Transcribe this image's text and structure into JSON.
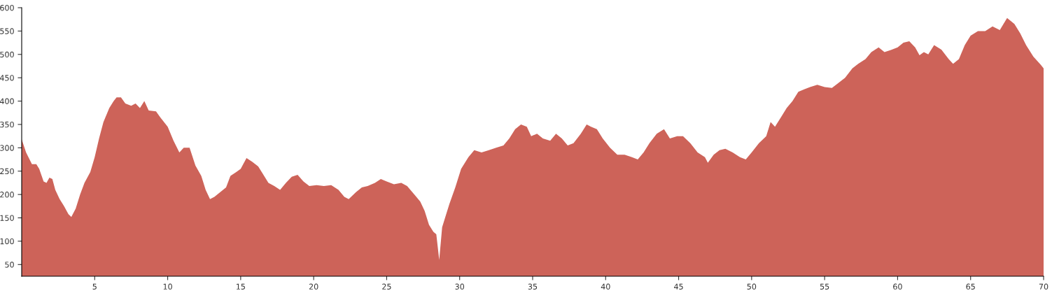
{
  "chart_data": {
    "type": "area",
    "xlim": [
      0,
      70
    ],
    "ylim": [
      25,
      600
    ],
    "xticks": [
      5,
      10,
      15,
      20,
      25,
      30,
      35,
      40,
      45,
      50,
      55,
      60,
      65,
      70
    ],
    "yticks": [
      50,
      100,
      150,
      200,
      250,
      300,
      350,
      400,
      450,
      500,
      550,
      600
    ],
    "grid": false,
    "legend": false,
    "series": [
      {
        "color": "#cd6359",
        "x": [
          0,
          0.3,
          0.7,
          1.0,
          1.2,
          1.5,
          1.7,
          1.9,
          2.1,
          2.3,
          2.6,
          2.9,
          3.2,
          3.4,
          3.7,
          4.0,
          4.3,
          4.7,
          5.0,
          5.3,
          5.6,
          6.0,
          6.3,
          6.5,
          6.8,
          7.1,
          7.5,
          7.8,
          8.1,
          8.4,
          8.7,
          9.2,
          9.5,
          10.0,
          10.4,
          10.8,
          11.1,
          11.5,
          11.9,
          12.3,
          12.6,
          12.9,
          13.2,
          13.6,
          14.0,
          14.3,
          14.7,
          15.0,
          15.4,
          15.8,
          16.2,
          16.5,
          16.9,
          17.3,
          17.7,
          18.1,
          18.5,
          18.9,
          19.3,
          19.7,
          20.2,
          20.7,
          21.2,
          21.7,
          22.1,
          22.4,
          22.9,
          23.3,
          23.7,
          24.2,
          24.6,
          25.0,
          25.5,
          26.0,
          26.4,
          26.9,
          27.3,
          27.6,
          27.9,
          28.2,
          28.4,
          28.6,
          28.8,
          29.0,
          29.3,
          29.7,
          30.1,
          30.6,
          31.0,
          31.5,
          32.0,
          32.5,
          33.0,
          33.4,
          33.8,
          34.2,
          34.6,
          34.9,
          35.3,
          35.7,
          36.2,
          36.6,
          37.0,
          37.4,
          37.8,
          38.3,
          38.7,
          39.0,
          39.4,
          39.8,
          40.3,
          40.8,
          41.3,
          41.8,
          42.2,
          42.6,
          43.0,
          43.5,
          44.0,
          44.4,
          44.9,
          45.3,
          45.8,
          46.3,
          46.8,
          47.0,
          47.4,
          47.8,
          48.2,
          48.7,
          49.2,
          49.6,
          50.0,
          50.5,
          51.0,
          51.3,
          51.6,
          52.0,
          52.4,
          52.8,
          53.2,
          53.6,
          54.0,
          54.5,
          55.0,
          55.5,
          56.0,
          56.4,
          56.9,
          57.3,
          57.8,
          58.2,
          58.7,
          59.1,
          59.6,
          60.0,
          60.4,
          60.8,
          61.2,
          61.5,
          61.8,
          62.1,
          62.5,
          63.0,
          63.5,
          63.8,
          64.2,
          64.6,
          65.0,
          65.5,
          66.0,
          66.5,
          67.0,
          67.5,
          68.0,
          68.4,
          68.8,
          69.3,
          69.8,
          70.0
        ],
        "values": [
          318,
          290,
          265,
          265,
          255,
          228,
          225,
          236,
          233,
          210,
          190,
          175,
          158,
          152,
          170,
          200,
          225,
          248,
          280,
          320,
          355,
          385,
          400,
          408,
          408,
          395,
          390,
          395,
          385,
          400,
          380,
          378,
          365,
          345,
          315,
          290,
          300,
          300,
          262,
          240,
          210,
          190,
          195,
          205,
          215,
          240,
          248,
          255,
          278,
          270,
          260,
          245,
          225,
          218,
          210,
          225,
          238,
          242,
          228,
          218,
          220,
          218,
          220,
          210,
          195,
          190,
          205,
          215,
          218,
          225,
          233,
          228,
          222,
          225,
          218,
          200,
          185,
          165,
          135,
          120,
          115,
          60,
          130,
          150,
          180,
          215,
          255,
          280,
          295,
          290,
          295,
          300,
          305,
          320,
          340,
          350,
          345,
          325,
          330,
          320,
          315,
          330,
          320,
          305,
          310,
          330,
          350,
          345,
          340,
          320,
          300,
          285,
          285,
          280,
          275,
          290,
          310,
          330,
          340,
          320,
          325,
          325,
          310,
          290,
          280,
          268,
          285,
          295,
          298,
          290,
          280,
          275,
          290,
          310,
          325,
          355,
          345,
          365,
          385,
          400,
          420,
          425,
          430,
          435,
          430,
          428,
          440,
          450,
          470,
          480,
          490,
          505,
          515,
          505,
          510,
          515,
          525,
          528,
          515,
          498,
          505,
          500,
          520,
          510,
          490,
          480,
          490,
          520,
          540,
          550,
          550,
          560,
          552,
          578,
          565,
          545,
          520,
          495,
          478,
          470
        ]
      }
    ]
  }
}
